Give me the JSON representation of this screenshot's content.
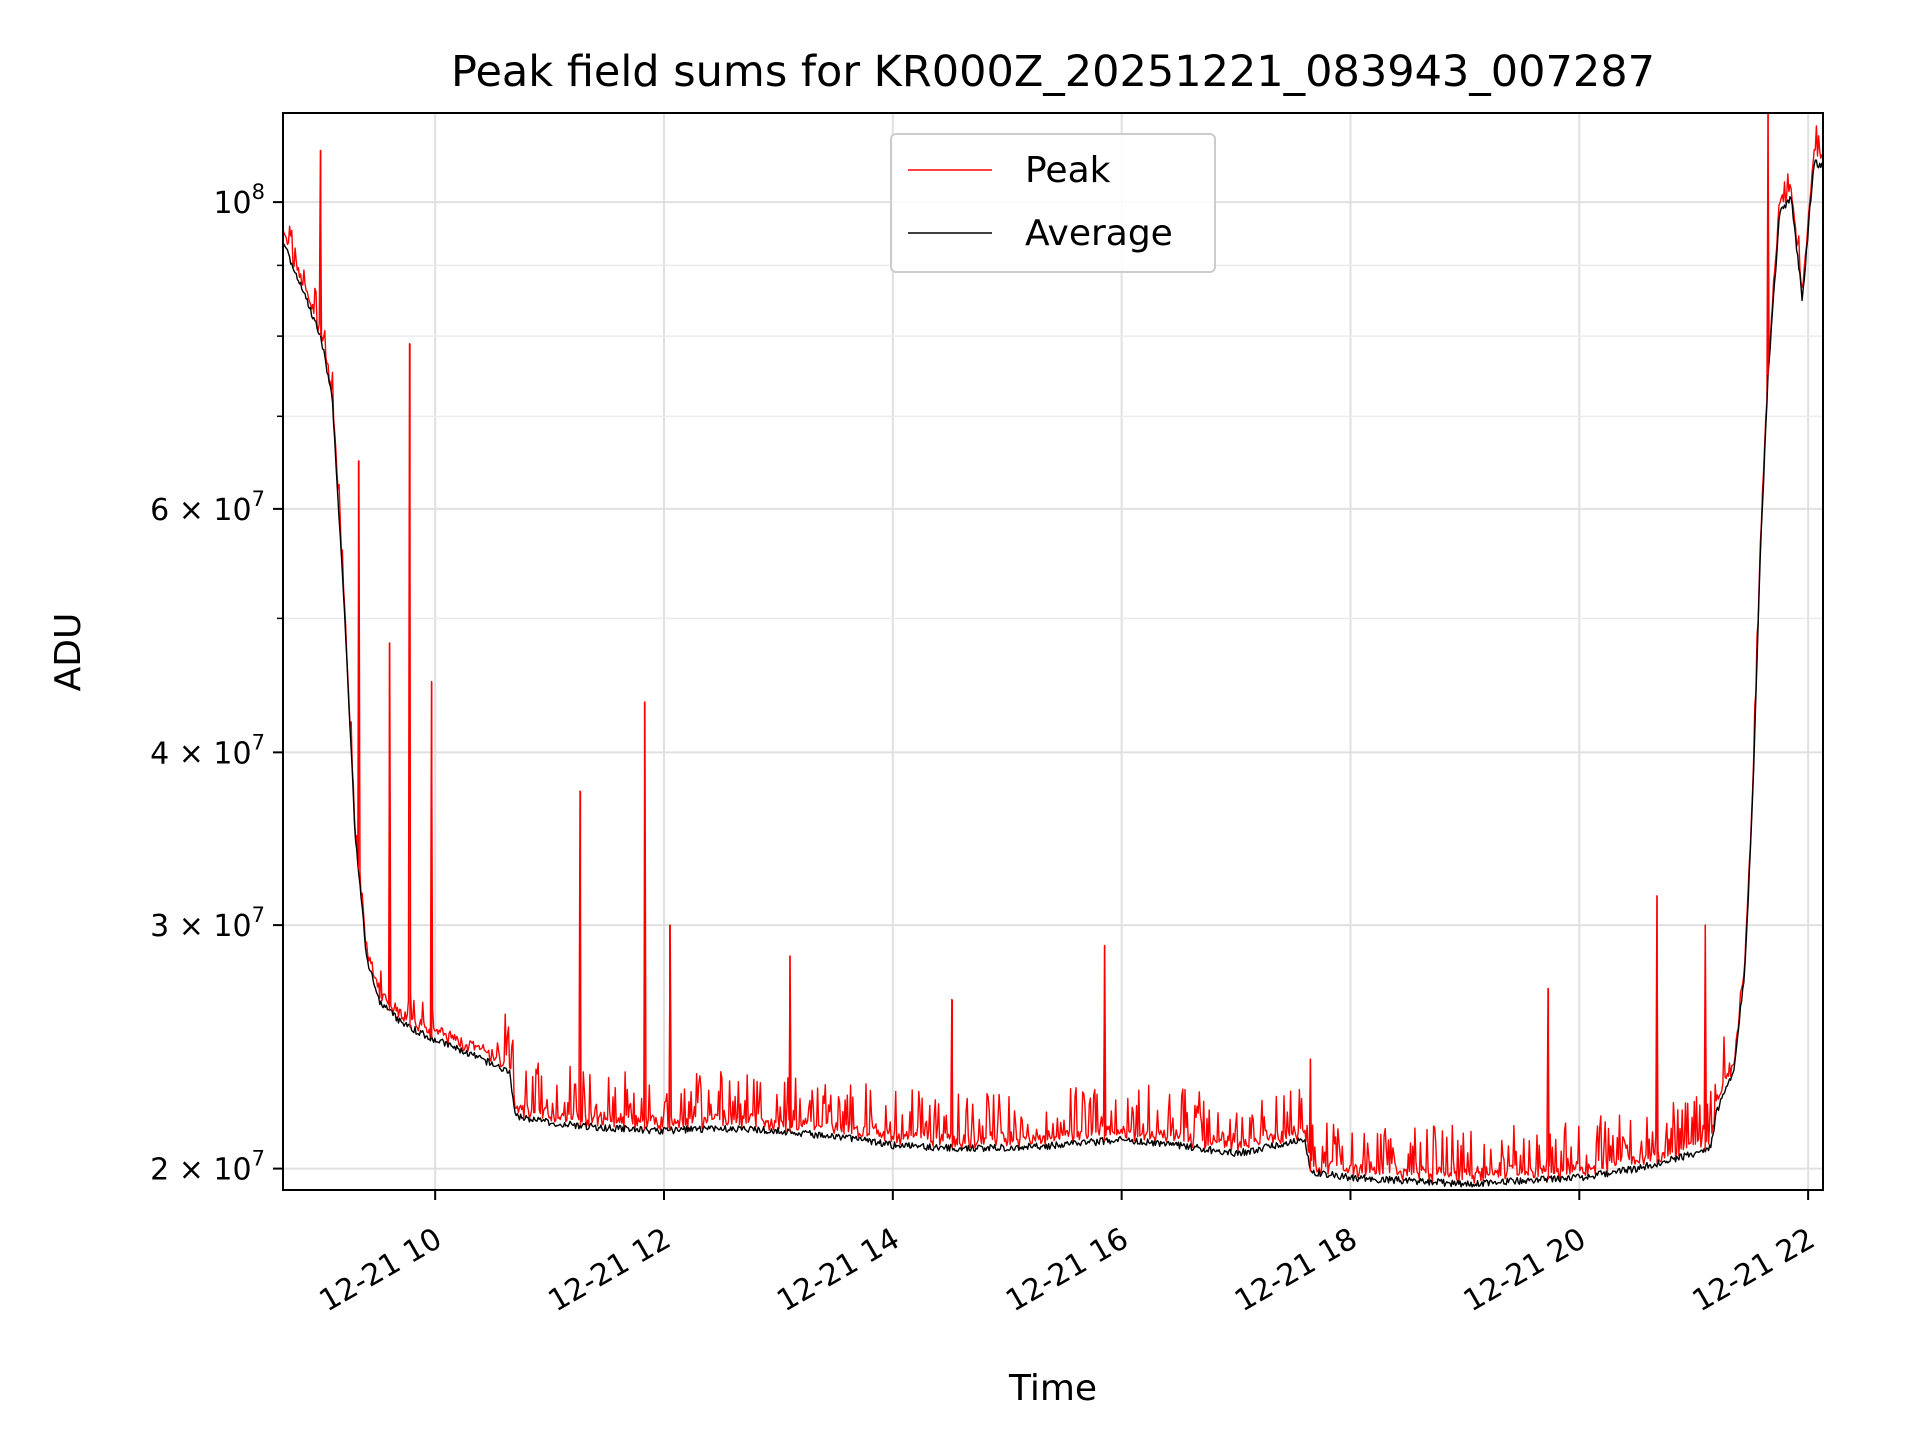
{
  "chart_data": {
    "type": "line",
    "title": "Peak field sums for KR000Z_20251221_083943_007287",
    "xlabel": "Time",
    "ylabel": "ADU",
    "yscale": "log",
    "xlim": [
      8.67,
      22.13
    ],
    "ylim": [
      19300000,
      116000000
    ],
    "x_ticks": [
      {
        "value": 10,
        "label": "12-21 10"
      },
      {
        "value": 12,
        "label": "12-21 12"
      },
      {
        "value": 14,
        "label": "12-21 14"
      },
      {
        "value": 16,
        "label": "12-21 16"
      },
      {
        "value": 18,
        "label": "12-21 18"
      },
      {
        "value": 20,
        "label": "12-21 20"
      },
      {
        "value": 22,
        "label": "12-21 22"
      }
    ],
    "y_major_ticks": [
      {
        "value": 100000000,
        "base": "10",
        "exp": "8"
      },
      {
        "value": 60000000,
        "base": "6 × 10",
        "exp": "7"
      },
      {
        "value": 40000000,
        "base": "4 × 10",
        "exp": "7"
      },
      {
        "value": 30000000,
        "base": "3 × 10",
        "exp": "7"
      },
      {
        "value": 20000000,
        "base": "2 × 10",
        "exp": "7"
      }
    ],
    "y_minor_ticks": [
      90000000,
      80000000,
      70000000,
      50000000
    ],
    "grid": true,
    "legend": {
      "position": "upper center",
      "entries": [
        "Peak",
        "Average"
      ]
    },
    "series": [
      {
        "name": "Average",
        "color": "#000000",
        "x": [
          8.67,
          8.75,
          8.85,
          9.0,
          9.1,
          9.2,
          9.3,
          9.4,
          9.5,
          9.7,
          9.9,
          10.1,
          10.3,
          10.5,
          10.65,
          10.7,
          11.0,
          11.5,
          12.0,
          12.5,
          13.0,
          13.5,
          14.0,
          14.5,
          15.0,
          15.5,
          16.0,
          16.5,
          17.0,
          17.6,
          17.65,
          18.0,
          18.5,
          19.0,
          19.5,
          20.0,
          20.5,
          21.0,
          21.15,
          21.2,
          21.35,
          21.45,
          21.52,
          21.58,
          21.65,
          21.75,
          21.85,
          21.95,
          22.05,
          22.13
        ],
        "y": [
          94000000,
          90000000,
          86000000,
          80000000,
          72000000,
          52000000,
          35000000,
          28500000,
          26500000,
          25500000,
          25000000,
          24600000,
          24200000,
          23800000,
          23500000,
          21800000,
          21600000,
          21400000,
          21300000,
          21400000,
          21300000,
          21100000,
          20800000,
          20700000,
          20700000,
          20800000,
          21000000,
          20800000,
          20500000,
          21000000,
          19900000,
          19700000,
          19600000,
          19500000,
          19600000,
          19700000,
          20000000,
          20500000,
          20700000,
          22000000,
          23500000,
          28000000,
          38000000,
          55000000,
          75000000,
          98000000,
          101000000,
          85000000,
          107000000,
          106000000
        ]
      },
      {
        "name": "Peak",
        "color": "#ff0000",
        "spikes": [
          {
            "x": 9.0,
            "y": 109000000
          },
          {
            "x": 9.33,
            "y": 65000000
          },
          {
            "x": 9.6,
            "y": 48000000
          },
          {
            "x": 9.78,
            "y": 79000000
          },
          {
            "x": 9.97,
            "y": 45000000
          },
          {
            "x": 11.27,
            "y": 37500000
          },
          {
            "x": 11.83,
            "y": 43500000
          },
          {
            "x": 12.05,
            "y": 30000000
          },
          {
            "x": 13.1,
            "y": 28500000
          },
          {
            "x": 14.52,
            "y": 26500000
          },
          {
            "x": 15.85,
            "y": 29000000
          },
          {
            "x": 17.65,
            "y": 24000000
          },
          {
            "x": 19.73,
            "y": 27000000
          },
          {
            "x": 20.68,
            "y": 31500000
          },
          {
            "x": 21.1,
            "y": 30000000
          },
          {
            "x": 21.65,
            "y": 116000000
          }
        ]
      }
    ]
  }
}
